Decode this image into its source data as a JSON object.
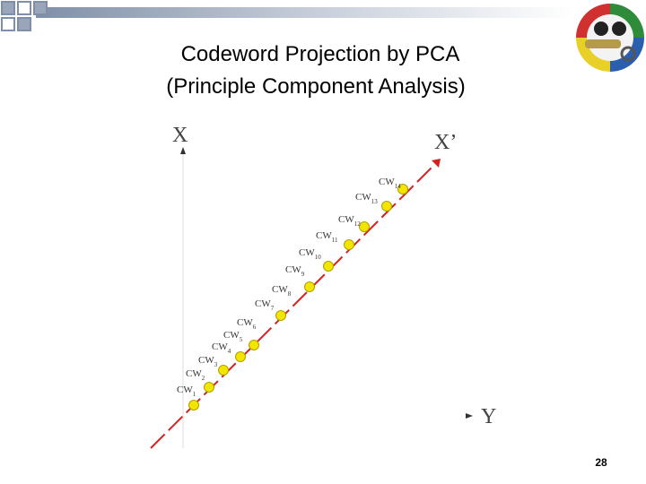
{
  "title": {
    "line1": "Codeword Projection by PCA",
    "line2": "(Principle Component Analysis)"
  },
  "axes": {
    "x": "X",
    "x_prime": "X’",
    "y": "Y"
  },
  "codewords": [
    {
      "base": "CW",
      "sub": "1"
    },
    {
      "base": "CW",
      "sub": "2"
    },
    {
      "base": "CW",
      "sub": "3"
    },
    {
      "base": "CW",
      "sub": "4"
    },
    {
      "base": "CW",
      "sub": "5"
    },
    {
      "base": "CW",
      "sub": "6"
    },
    {
      "base": "CW",
      "sub": "7"
    },
    {
      "base": "CW",
      "sub": "8"
    },
    {
      "base": "CW",
      "sub": "9"
    },
    {
      "base": "CW",
      "sub": "10"
    },
    {
      "base": "CW",
      "sub": "11"
    },
    {
      "base": "CW",
      "sub": "12"
    },
    {
      "base": "CW",
      "sub": "13"
    },
    {
      "base": "CW",
      "sub": "14"
    }
  ],
  "page_number": "28"
}
